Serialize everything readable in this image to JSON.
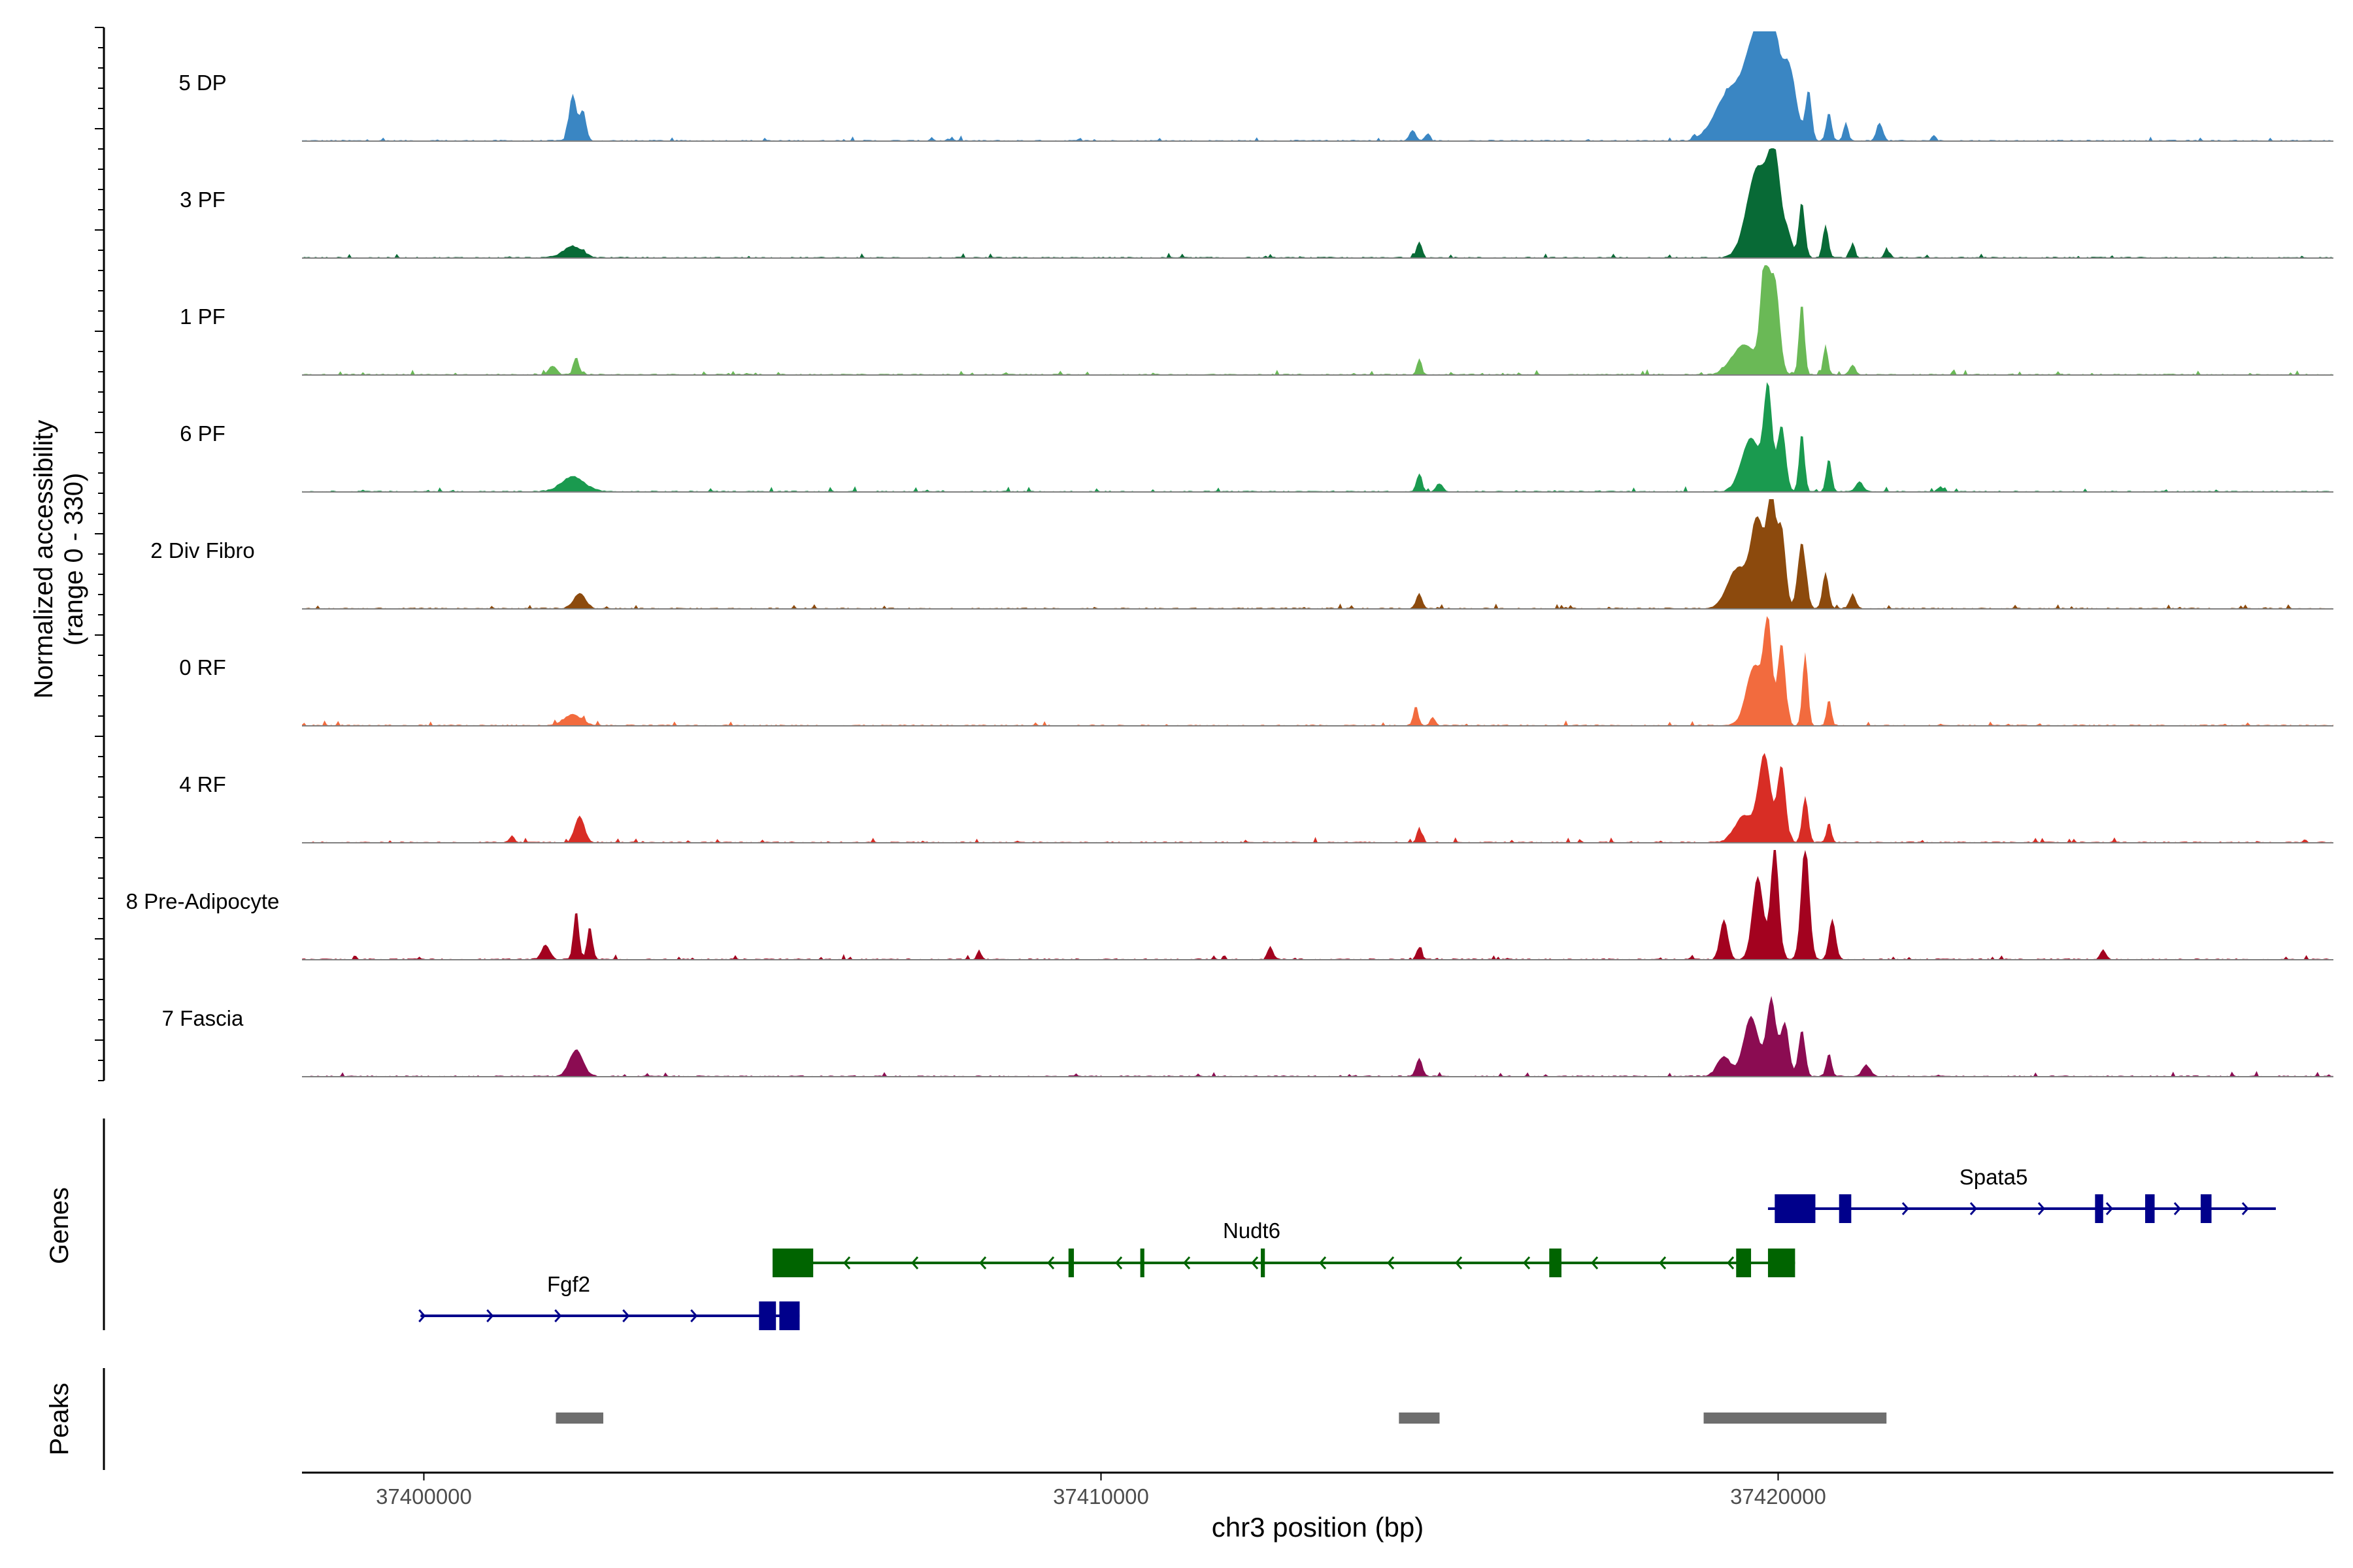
{
  "chart_data": {
    "type": "area",
    "title": "",
    "xlabel": "chr3 position (bp)",
    "ylabel": "Normalized accessibility",
    "ylabel_range": "(range 0 - 330)",
    "xlim": [
      37398200,
      37428200
    ],
    "ylim": [
      0,
      330
    ],
    "x_ticks": [
      37400000,
      37410000,
      37420000
    ],
    "tracks": [
      {
        "name": "5 DP",
        "color": "#3a86c3",
        "peaks": [
          [
            37402200,
            55,
            140
          ],
          [
            37402350,
            45,
            90
          ],
          [
            37407500,
            25,
            10
          ],
          [
            37407800,
            25,
            10
          ],
          [
            37414600,
            45,
            32
          ],
          [
            37414800,
            35,
            15
          ],
          [
            37419300,
            220,
            150
          ],
          [
            37419700,
            160,
            300
          ],
          [
            37419900,
            90,
            290
          ],
          [
            37420150,
            110,
            230
          ],
          [
            37420450,
            45,
            150
          ],
          [
            37420750,
            40,
            85
          ],
          [
            37421000,
            35,
            55
          ],
          [
            37421500,
            45,
            55
          ],
          [
            37422300,
            30,
            18
          ]
        ]
      },
      {
        "name": "3 PF",
        "color": "#086a36",
        "peaks": [
          [
            37402200,
            140,
            35
          ],
          [
            37414700,
            40,
            50
          ],
          [
            37419700,
            160,
            270
          ],
          [
            37419950,
            90,
            260
          ],
          [
            37420150,
            60,
            60
          ],
          [
            37420350,
            45,
            170
          ],
          [
            37420700,
            40,
            100
          ],
          [
            37421100,
            35,
            45
          ],
          [
            37421600,
            30,
            30
          ]
        ]
      },
      {
        "name": "1 PF",
        "color": "#6ab956",
        "peaks": [
          [
            37401900,
            60,
            25
          ],
          [
            37402250,
            40,
            55
          ],
          [
            37414700,
            35,
            50
          ],
          [
            37419500,
            180,
            90
          ],
          [
            37419800,
            60,
            320
          ],
          [
            37419950,
            70,
            280
          ],
          [
            37420350,
            40,
            220
          ],
          [
            37420700,
            35,
            90
          ],
          [
            37421100,
            40,
            30
          ]
        ]
      },
      {
        "name": "6 PF",
        "color": "#1a9a4f",
        "peaks": [
          [
            37402200,
            170,
            45
          ],
          [
            37414700,
            40,
            55
          ],
          [
            37415000,
            50,
            25
          ],
          [
            37419600,
            140,
            160
          ],
          [
            37419850,
            60,
            300
          ],
          [
            37420050,
            60,
            200
          ],
          [
            37420350,
            40,
            180
          ],
          [
            37420750,
            40,
            100
          ],
          [
            37421200,
            50,
            30
          ],
          [
            37422400,
            40,
            15
          ]
        ]
      },
      {
        "name": "2 Div Fibro",
        "color": "#8c4a0d",
        "peaks": [
          [
            37402300,
            90,
            45
          ],
          [
            37414700,
            45,
            45
          ],
          [
            37419400,
            150,
            120
          ],
          [
            37419700,
            100,
            260
          ],
          [
            37419900,
            60,
            330
          ],
          [
            37420050,
            60,
            240
          ],
          [
            37420350,
            60,
            200
          ],
          [
            37420700,
            45,
            110
          ],
          [
            37421100,
            50,
            40
          ]
        ]
      },
      {
        "name": "0 RF",
        "color": "#f26b3e",
        "peaks": [
          [
            37402200,
            130,
            32
          ],
          [
            37414650,
            35,
            60
          ],
          [
            37414900,
            40,
            25
          ],
          [
            37419650,
            120,
            180
          ],
          [
            37419850,
            60,
            290
          ],
          [
            37420050,
            55,
            250
          ],
          [
            37420400,
            40,
            220
          ],
          [
            37420750,
            35,
            80
          ]
        ]
      },
      {
        "name": "4 RF",
        "color": "#d82d25",
        "peaks": [
          [
            37401300,
            40,
            20
          ],
          [
            37402300,
            70,
            80
          ],
          [
            37414700,
            35,
            45
          ],
          [
            37419500,
            140,
            80
          ],
          [
            37419800,
            90,
            260
          ],
          [
            37420050,
            60,
            230
          ],
          [
            37420400,
            45,
            140
          ],
          [
            37420750,
            35,
            60
          ]
        ]
      },
      {
        "name": "8 Pre-Adipocyte",
        "color": "#a3021f",
        "peaks": [
          [
            37401800,
            60,
            45
          ],
          [
            37402250,
            40,
            150
          ],
          [
            37402450,
            40,
            100
          ],
          [
            37408200,
            30,
            30
          ],
          [
            37412500,
            40,
            40
          ],
          [
            37414700,
            40,
            35
          ],
          [
            37419200,
            60,
            120
          ],
          [
            37419700,
            80,
            250
          ],
          [
            37419950,
            60,
            340
          ],
          [
            37420400,
            60,
            350
          ],
          [
            37420800,
            50,
            120
          ],
          [
            37424800,
            40,
            30
          ]
        ]
      },
      {
        "name": "7 Fascia",
        "color": "#8b0c52",
        "peaks": [
          [
            37402250,
            100,
            80
          ],
          [
            37414700,
            45,
            55
          ],
          [
            37419200,
            100,
            60
          ],
          [
            37419600,
            110,
            180
          ],
          [
            37419900,
            70,
            230
          ],
          [
            37420100,
            60,
            160
          ],
          [
            37420350,
            50,
            140
          ],
          [
            37420750,
            40,
            70
          ],
          [
            37421300,
            60,
            35
          ]
        ]
      }
    ],
    "genes": [
      {
        "name": "Fgf2",
        "strand": "+",
        "color": "#00008b",
        "start": 37399950,
        "end": 37405550,
        "exons": [
          [
            37404950,
            37405200
          ],
          [
            37405250,
            37405550
          ]
        ]
      },
      {
        "name": "Nudt6",
        "strand": "-",
        "color": "#006400",
        "start": 37405150,
        "end": 37420250,
        "exons": [
          [
            37405150,
            37405750
          ],
          [
            37409520,
            37409600
          ],
          [
            37410580,
            37410640
          ],
          [
            37412360,
            37412420
          ],
          [
            37416620,
            37416800
          ],
          [
            37419380,
            37419600
          ],
          [
            37419850,
            37420250
          ]
        ]
      },
      {
        "name": "Spata5",
        "strand": "+",
        "color": "#00008b",
        "start": 37419850,
        "end": 37427350,
        "exons": [
          [
            37419950,
            37420550
          ],
          [
            37420900,
            37421080
          ],
          [
            37424680,
            37424800
          ],
          [
            37425420,
            37425560
          ],
          [
            37426240,
            37426400
          ]
        ]
      }
    ],
    "peak_regions": [
      [
        37401950,
        37402650
      ],
      [
        37414400,
        37415000
      ],
      [
        37418900,
        37421600
      ]
    ]
  }
}
